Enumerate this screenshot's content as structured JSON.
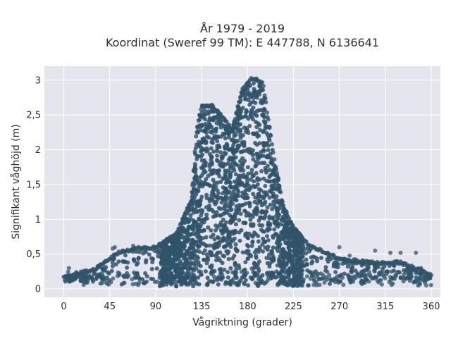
{
  "chart_data": {
    "type": "scatter",
    "title_line1": "År 1979 - 2019",
    "title_line2": "Koordinat (Sweref 99 TM): E 447788, N 6136641",
    "xlabel": "Vågriktning (grader)",
    "ylabel": "Signifikant våghöjd (m)",
    "xlim": [
      -19,
      369
    ],
    "ylim": [
      -0.12,
      3.2
    ],
    "xticks": [
      0,
      45,
      90,
      135,
      180,
      225,
      270,
      315,
      360
    ],
    "xtick_labels": [
      "0",
      "45",
      "90",
      "135",
      "180",
      "225",
      "270",
      "315",
      "360"
    ],
    "yticks": [
      0,
      0.5,
      1,
      1.5,
      2,
      2.5,
      3
    ],
    "ytick_labels": [
      "0",
      "0,5",
      "1",
      "1,5",
      "2",
      "2,5",
      "3"
    ],
    "grid": true,
    "background_color": "#e5e5ee",
    "marker_color": "#2f5469",
    "envelope_note_x": [
      0,
      30,
      55,
      70,
      90,
      110,
      125,
      130,
      135,
      145,
      155,
      165,
      175,
      185,
      195,
      205,
      215,
      225,
      240,
      255,
      270,
      300,
      330,
      360
    ],
    "envelope_upper_y": [
      0.18,
      0.3,
      0.55,
      0.6,
      0.62,
      0.8,
      1.3,
      2.3,
      2.65,
      2.65,
      2.5,
      2.3,
      2.9,
      3.05,
      2.98,
      2.0,
      1.2,
      0.9,
      0.65,
      0.55,
      0.45,
      0.4,
      0.4,
      0.22
    ],
    "envelope_lower_y": [
      0.1,
      0.08,
      0.06,
      0.04,
      0.03,
      0.03,
      0.03,
      0.03,
      0.03,
      0.04,
      0.04,
      0.04,
      0.04,
      0.04,
      0.04,
      0.04,
      0.03,
      0.03,
      0.04,
      0.06,
      0.08,
      0.1,
      0.12,
      0.13
    ],
    "outliers": [
      {
        "x": 5,
        "y": 0.3
      },
      {
        "x": 22,
        "y": 0.25
      },
      {
        "x": 35,
        "y": 0.2
      },
      {
        "x": 40,
        "y": 0.38
      },
      {
        "x": 48,
        "y": 0.58
      },
      {
        "x": 50,
        "y": 0.6
      },
      {
        "x": 58,
        "y": 0.55
      },
      {
        "x": 68,
        "y": 0.62
      },
      {
        "x": 270,
        "y": 0.6
      },
      {
        "x": 280,
        "y": 0.48
      },
      {
        "x": 282,
        "y": 0.3
      },
      {
        "x": 290,
        "y": 0.38
      },
      {
        "x": 300,
        "y": 0.2
      },
      {
        "x": 305,
        "y": 0.55
      },
      {
        "x": 320,
        "y": 0.52
      },
      {
        "x": 325,
        "y": 0.2
      },
      {
        "x": 330,
        "y": 0.52
      },
      {
        "x": 340,
        "y": 0.25
      },
      {
        "x": 345,
        "y": 0.52
      },
      {
        "x": 350,
        "y": 0.3
      },
      {
        "x": 358,
        "y": 0.2
      }
    ]
  }
}
